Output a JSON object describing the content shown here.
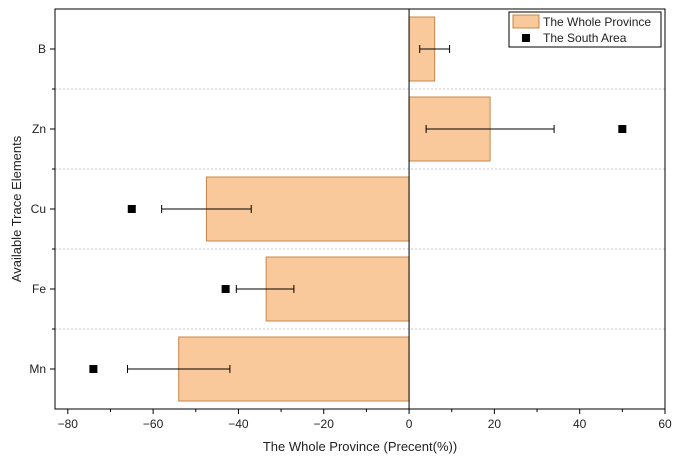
{
  "chart_data": {
    "type": "bar",
    "orientation": "horizontal",
    "categories": [
      "B",
      "Zn",
      "Cu",
      "Fe",
      "Mn"
    ],
    "series": [
      {
        "name": "The Whole Province",
        "kind": "bar",
        "values": [
          6,
          19,
          -47.5,
          -33.5,
          -54
        ],
        "error_low": [
          2.5,
          4,
          -58,
          -40.5,
          -66
        ],
        "error_high": [
          9.5,
          34,
          -37,
          -27,
          -42
        ],
        "color": "#f9c89b",
        "edge_color": "#c9864a"
      },
      {
        "name": "The South Area",
        "kind": "point",
        "values": [
          null,
          50,
          -65,
          -43,
          -74
        ],
        "color": "#000000"
      }
    ],
    "xlabel": "The Whole Province (Precent(%))",
    "ylabel": "Available Trace Elements",
    "xlim": [
      -83,
      60
    ],
    "xticks": [
      -80,
      -60,
      -40,
      -20,
      0,
      20,
      40,
      60
    ],
    "xtick_labels": [
      "−80",
      "−60",
      "−40",
      "−20",
      "0",
      "20",
      "40",
      "60"
    ],
    "grid": "horizontal-dashed",
    "legend_position": "top-right"
  }
}
